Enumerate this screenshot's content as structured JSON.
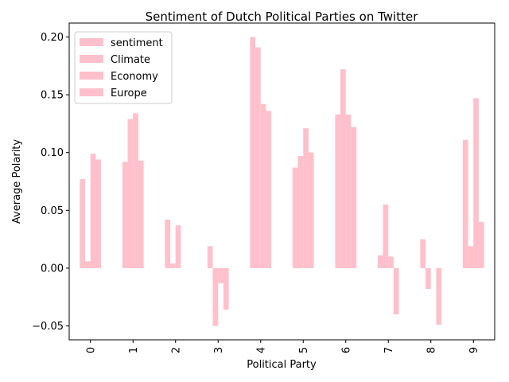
{
  "chart_data": {
    "type": "bar",
    "title": "Sentiment of Dutch Political Parties on Twitter",
    "xlabel": "Political Party",
    "ylabel": "Average Polarity",
    "categories": [
      "0",
      "1",
      "2",
      "3",
      "4",
      "5",
      "6",
      "7",
      "8",
      "9"
    ],
    "ylim": [
      -0.062,
      0.212
    ],
    "yticks": [
      -0.05,
      0.0,
      0.05,
      0.1,
      0.15,
      0.2
    ],
    "ytick_labels": [
      "−0.05",
      "0.00",
      "0.05",
      "0.10",
      "0.15",
      "0.20"
    ],
    "bar_color": "#ffc0cb",
    "legend_position": "upper-left",
    "grid": false,
    "series": [
      {
        "name": "sentiment",
        "values": [
          0.077,
          0.092,
          0.042,
          0.019,
          0.2,
          0.087,
          0.133,
          0.011,
          0.025,
          0.111
        ]
      },
      {
        "name": "Climate",
        "values": [
          0.006,
          0.129,
          0.004,
          -0.05,
          0.191,
          0.097,
          0.172,
          0.055,
          -0.018,
          0.019
        ]
      },
      {
        "name": "Economy",
        "values": [
          0.099,
          0.134,
          0.037,
          -0.013,
          0.142,
          0.121,
          0.133,
          0.01,
          0.0,
          0.147
        ]
      },
      {
        "name": "Europe",
        "values": [
          0.094,
          0.093,
          0.0,
          -0.036,
          0.136,
          0.1,
          0.122,
          -0.04,
          -0.049,
          0.04
        ]
      }
    ]
  }
}
